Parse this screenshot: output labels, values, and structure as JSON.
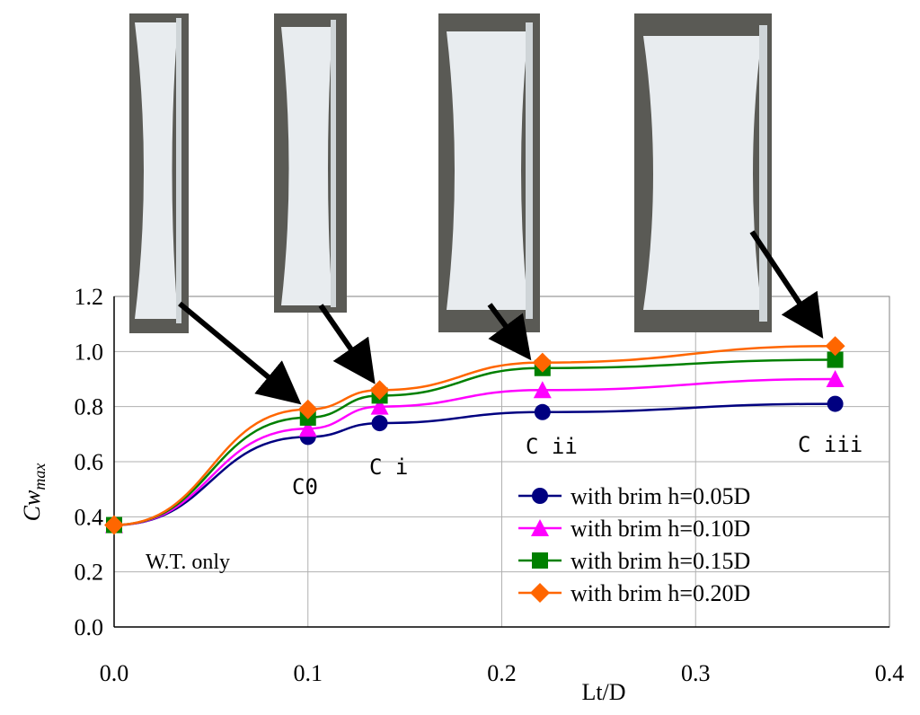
{
  "chart_data": {
    "type": "line",
    "xlabel": "Lt/D",
    "ylabel": "Cw",
    "ylabel_sub": "max",
    "xlim": [
      0.0,
      0.4
    ],
    "ylim": [
      0.0,
      1.2
    ],
    "x_ticks": [
      "0.0",
      "0.1",
      "0.2",
      "0.3",
      "0.4"
    ],
    "y_ticks": [
      "0.0",
      "0.2",
      "0.4",
      "0.6",
      "0.8",
      "1.0",
      "1.2"
    ],
    "grid": true,
    "legend_position": "bottom-right",
    "x": [
      0.0,
      0.1,
      0.137,
      0.221,
      0.372
    ],
    "series": [
      {
        "name": "with brim h=0.05D",
        "color": "#000080",
        "marker": "circle",
        "values": [
          0.37,
          0.69,
          0.74,
          0.78,
          0.81
        ]
      },
      {
        "name": "with brim h=0.10D",
        "color": "#ff00ff",
        "marker": "triangle",
        "values": [
          0.37,
          0.72,
          0.8,
          0.86,
          0.9
        ]
      },
      {
        "name": "with brim h=0.15D",
        "color": "#008000",
        "marker": "square",
        "values": [
          0.37,
          0.76,
          0.84,
          0.94,
          0.97
        ]
      },
      {
        "name": "with brim h=0.20D",
        "color": "#ff6600",
        "marker": "diamond",
        "values": [
          0.37,
          0.79,
          0.86,
          0.96,
          1.02
        ]
      }
    ],
    "annotations": [
      "W.T. only",
      "C0",
      "C i",
      "C ii",
      "C iii"
    ]
  }
}
